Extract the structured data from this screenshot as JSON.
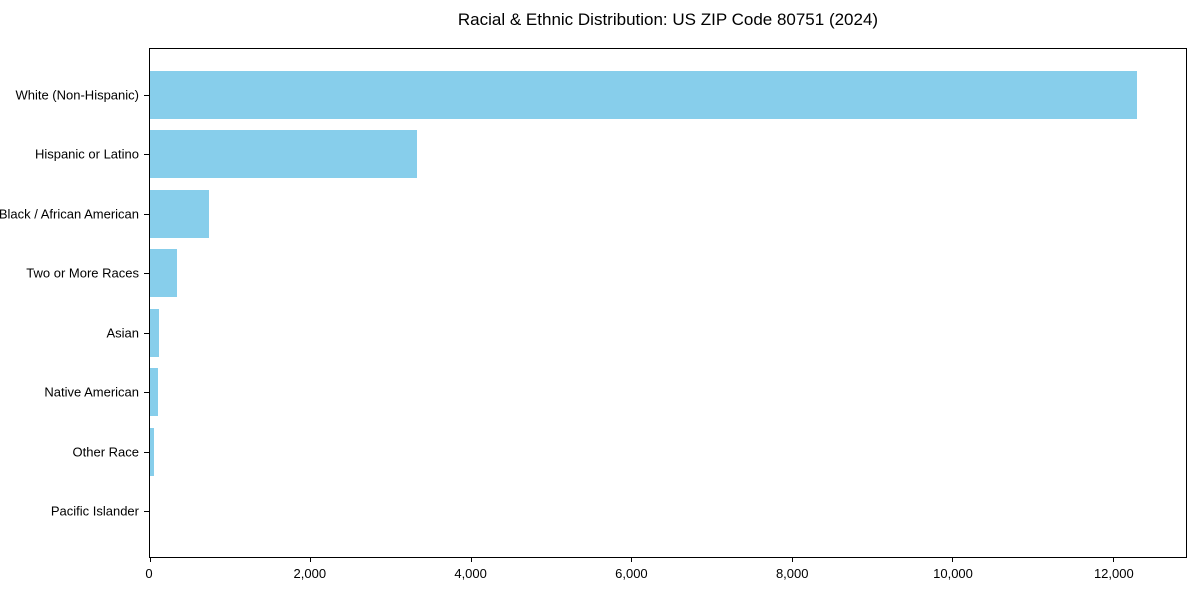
{
  "chart_data": {
    "type": "bar",
    "orientation": "horizontal",
    "title": "Racial & Ethnic Distribution: US ZIP Code 80751 (2024)",
    "categories": [
      "White (Non-Hispanic)",
      "Hispanic or Latino",
      "Black / African American",
      "Two or More Races",
      "Asian",
      "Native American",
      "Other Race",
      "Pacific Islander"
    ],
    "values": [
      12295,
      3330,
      730,
      335,
      115,
      100,
      50,
      0
    ],
    "xlabel": "",
    "ylabel": "",
    "xlim": [
      0,
      12910
    ],
    "xticks": {
      "values": [
        0,
        2000,
        4000,
        6000,
        8000,
        10000,
        12000
      ],
      "labels": [
        "0",
        "2,000",
        "4,000",
        "6,000",
        "8,000",
        "10,000",
        "12,000"
      ]
    },
    "bar_color": "#87CEEB",
    "axis_color": "#000000",
    "text_color": "#000000",
    "grid": false,
    "legend": "none"
  }
}
